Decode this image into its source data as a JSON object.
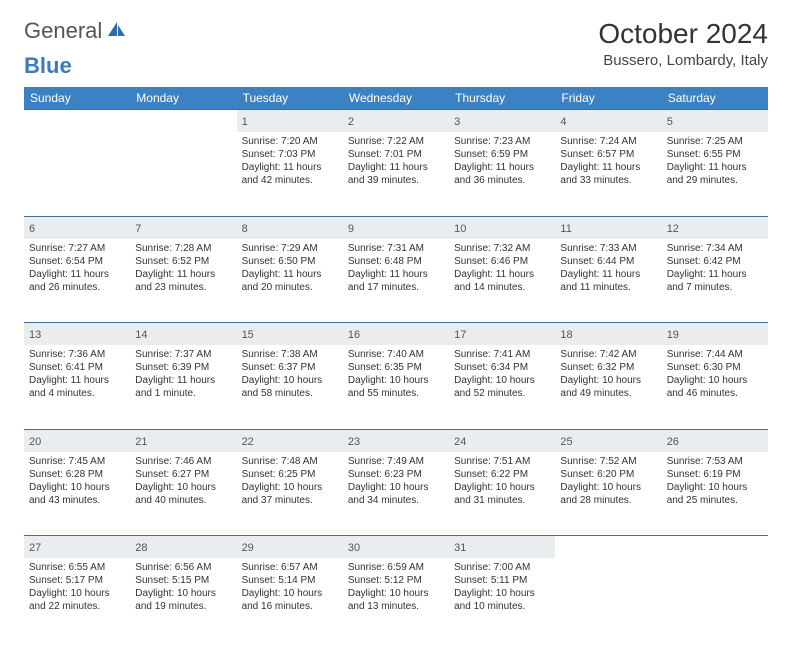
{
  "brand": {
    "part1": "General",
    "part2": "Blue"
  },
  "title": "October 2024",
  "location": "Bussero, Lombardy, Italy",
  "colors": {
    "header_bg": "#3b82c4",
    "header_text": "#ffffff",
    "daynum_bg": "#e9edf0",
    "border": "#3b6fa3",
    "brand_blue": "#3b7bbf"
  },
  "day_headers": [
    "Sunday",
    "Monday",
    "Tuesday",
    "Wednesday",
    "Thursday",
    "Friday",
    "Saturday"
  ],
  "weeks": [
    [
      null,
      null,
      {
        "n": "1",
        "sr": "7:20 AM",
        "ss": "7:03 PM",
        "dl": "11 hours and 42 minutes."
      },
      {
        "n": "2",
        "sr": "7:22 AM",
        "ss": "7:01 PM",
        "dl": "11 hours and 39 minutes."
      },
      {
        "n": "3",
        "sr": "7:23 AM",
        "ss": "6:59 PM",
        "dl": "11 hours and 36 minutes."
      },
      {
        "n": "4",
        "sr": "7:24 AM",
        "ss": "6:57 PM",
        "dl": "11 hours and 33 minutes."
      },
      {
        "n": "5",
        "sr": "7:25 AM",
        "ss": "6:55 PM",
        "dl": "11 hours and 29 minutes."
      }
    ],
    [
      {
        "n": "6",
        "sr": "7:27 AM",
        "ss": "6:54 PM",
        "dl": "11 hours and 26 minutes."
      },
      {
        "n": "7",
        "sr": "7:28 AM",
        "ss": "6:52 PM",
        "dl": "11 hours and 23 minutes."
      },
      {
        "n": "8",
        "sr": "7:29 AM",
        "ss": "6:50 PM",
        "dl": "11 hours and 20 minutes."
      },
      {
        "n": "9",
        "sr": "7:31 AM",
        "ss": "6:48 PM",
        "dl": "11 hours and 17 minutes."
      },
      {
        "n": "10",
        "sr": "7:32 AM",
        "ss": "6:46 PM",
        "dl": "11 hours and 14 minutes."
      },
      {
        "n": "11",
        "sr": "7:33 AM",
        "ss": "6:44 PM",
        "dl": "11 hours and 11 minutes."
      },
      {
        "n": "12",
        "sr": "7:34 AM",
        "ss": "6:42 PM",
        "dl": "11 hours and 7 minutes."
      }
    ],
    [
      {
        "n": "13",
        "sr": "7:36 AM",
        "ss": "6:41 PM",
        "dl": "11 hours and 4 minutes."
      },
      {
        "n": "14",
        "sr": "7:37 AM",
        "ss": "6:39 PM",
        "dl": "11 hours and 1 minute."
      },
      {
        "n": "15",
        "sr": "7:38 AM",
        "ss": "6:37 PM",
        "dl": "10 hours and 58 minutes."
      },
      {
        "n": "16",
        "sr": "7:40 AM",
        "ss": "6:35 PM",
        "dl": "10 hours and 55 minutes."
      },
      {
        "n": "17",
        "sr": "7:41 AM",
        "ss": "6:34 PM",
        "dl": "10 hours and 52 minutes."
      },
      {
        "n": "18",
        "sr": "7:42 AM",
        "ss": "6:32 PM",
        "dl": "10 hours and 49 minutes."
      },
      {
        "n": "19",
        "sr": "7:44 AM",
        "ss": "6:30 PM",
        "dl": "10 hours and 46 minutes."
      }
    ],
    [
      {
        "n": "20",
        "sr": "7:45 AM",
        "ss": "6:28 PM",
        "dl": "10 hours and 43 minutes."
      },
      {
        "n": "21",
        "sr": "7:46 AM",
        "ss": "6:27 PM",
        "dl": "10 hours and 40 minutes."
      },
      {
        "n": "22",
        "sr": "7:48 AM",
        "ss": "6:25 PM",
        "dl": "10 hours and 37 minutes."
      },
      {
        "n": "23",
        "sr": "7:49 AM",
        "ss": "6:23 PM",
        "dl": "10 hours and 34 minutes."
      },
      {
        "n": "24",
        "sr": "7:51 AM",
        "ss": "6:22 PM",
        "dl": "10 hours and 31 minutes."
      },
      {
        "n": "25",
        "sr": "7:52 AM",
        "ss": "6:20 PM",
        "dl": "10 hours and 28 minutes."
      },
      {
        "n": "26",
        "sr": "7:53 AM",
        "ss": "6:19 PM",
        "dl": "10 hours and 25 minutes."
      }
    ],
    [
      {
        "n": "27",
        "sr": "6:55 AM",
        "ss": "5:17 PM",
        "dl": "10 hours and 22 minutes."
      },
      {
        "n": "28",
        "sr": "6:56 AM",
        "ss": "5:15 PM",
        "dl": "10 hours and 19 minutes."
      },
      {
        "n": "29",
        "sr": "6:57 AM",
        "ss": "5:14 PM",
        "dl": "10 hours and 16 minutes."
      },
      {
        "n": "30",
        "sr": "6:59 AM",
        "ss": "5:12 PM",
        "dl": "10 hours and 13 minutes."
      },
      {
        "n": "31",
        "sr": "7:00 AM",
        "ss": "5:11 PM",
        "dl": "10 hours and 10 minutes."
      },
      null,
      null
    ]
  ],
  "labels": {
    "sunrise": "Sunrise: ",
    "sunset": "Sunset: ",
    "daylight": "Daylight: "
  }
}
